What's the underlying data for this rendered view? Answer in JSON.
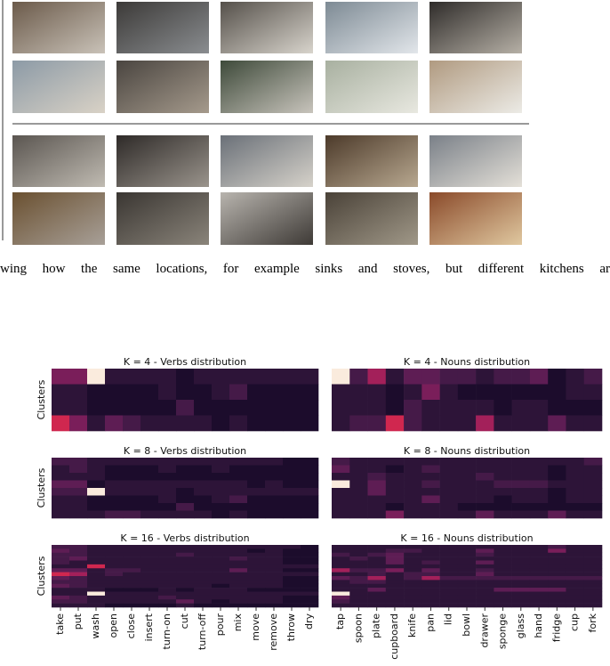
{
  "caption": "wing how the same locations, for example sinks and stoves, but different kitchens ar",
  "heatmaps": {
    "colormap": [
      "#1c0c2c",
      "#2d1438",
      "#451a48",
      "#5e1d54",
      "#7a1e5a",
      "#a3205a",
      "#d0274f",
      "#ee5a45",
      "#f5a17c",
      "#faebdd"
    ],
    "y_label": "Clusters",
    "verbs": [
      "take",
      "put",
      "wash",
      "open",
      "close",
      "insert",
      "turn-on",
      "cut",
      "turn-off",
      "pour",
      "mix",
      "move",
      "remove",
      "throw",
      "dry"
    ],
    "nouns": [
      "tap",
      "spoon",
      "plate",
      "cupboard",
      "knife",
      "pan",
      "lid",
      "bowl",
      "drawer",
      "sponge",
      "glass",
      "hand",
      "fridge",
      "cup",
      "fork"
    ],
    "panels": [
      {
        "verbs": {
          "title": "K = 4 - Verbs distribution",
          "values": [
            [
              4,
              4,
              9,
              1,
              1,
              1,
              1,
              0,
              1,
              1,
              1,
              1,
              1,
              1,
              1
            ],
            [
              1,
              1,
              0,
              0,
              0,
              0,
              1,
              0,
              0,
              1,
              2,
              0,
              0,
              0,
              0
            ],
            [
              1,
              1,
              0,
              0,
              0,
              0,
              0,
              2,
              0,
              0,
              0,
              0,
              0,
              0,
              0
            ],
            [
              6,
              4,
              1,
              3,
              2,
              1,
              1,
              1,
              1,
              0,
              1,
              0,
              0,
              0,
              0
            ]
          ]
        },
        "nouns": {
          "title": "K = 4 - Nouns distribution",
          "values": [
            [
              9,
              2,
              5,
              1,
              3,
              3,
              2,
              2,
              1,
              2,
              2,
              3,
              0,
              1,
              2
            ],
            [
              1,
              1,
              1,
              0,
              1,
              4,
              1,
              0,
              0,
              0,
              0,
              0,
              0,
              1,
              1
            ],
            [
              1,
              1,
              1,
              0,
              2,
              1,
              1,
              1,
              1,
              0,
              1,
              1,
              0,
              0,
              0
            ],
            [
              1,
              2,
              2,
              6,
              2,
              1,
              1,
              1,
              5,
              1,
              1,
              1,
              3,
              1,
              1
            ]
          ]
        }
      },
      {
        "verbs": {
          "title": "K = 8 - Verbs distribution",
          "values": [
            [
              2,
              2,
              1,
              1,
              1,
              1,
              1,
              1,
              1,
              1,
              1,
              1,
              1,
              0,
              0
            ],
            [
              1,
              2,
              1,
              0,
              0,
              0,
              1,
              0,
              0,
              1,
              0,
              0,
              0,
              0,
              0
            ],
            [
              1,
              1,
              1,
              0,
              0,
              0,
              0,
              0,
              0,
              0,
              0,
              0,
              0,
              0,
              0
            ],
            [
              3,
              3,
              0,
              1,
              1,
              1,
              1,
              1,
              1,
              1,
              1,
              0,
              1,
              0,
              0
            ],
            [
              2,
              2,
              9,
              1,
              1,
              1,
              1,
              0,
              1,
              1,
              1,
              1,
              1,
              1,
              1
            ],
            [
              1,
              1,
              0,
              0,
              0,
              0,
              1,
              0,
              0,
              1,
              2,
              0,
              0,
              0,
              0
            ],
            [
              1,
              1,
              0,
              0,
              0,
              0,
              0,
              2,
              0,
              0,
              0,
              0,
              0,
              0,
              0
            ],
            [
              1,
              1,
              1,
              2,
              2,
              1,
              1,
              1,
              1,
              0,
              1,
              0,
              0,
              0,
              0
            ]
          ]
        },
        "nouns": {
          "title": "K = 8 - Nouns distribution",
          "values": [
            [
              2,
              1,
              1,
              1,
              1,
              1,
              1,
              1,
              1,
              1,
              1,
              1,
              1,
              1,
              2
            ],
            [
              3,
              1,
              1,
              0,
              1,
              2,
              1,
              1,
              1,
              1,
              1,
              1,
              0,
              1,
              1
            ],
            [
              1,
              1,
              2,
              1,
              1,
              1,
              1,
              1,
              2,
              1,
              1,
              1,
              0,
              1,
              1
            ],
            [
              9,
              1,
              3,
              1,
              1,
              2,
              1,
              1,
              1,
              2,
              2,
              2,
              1,
              1,
              1
            ],
            [
              1,
              1,
              3,
              1,
              1,
              1,
              1,
              1,
              1,
              1,
              1,
              1,
              0,
              1,
              1
            ],
            [
              1,
              1,
              1,
              1,
              1,
              3,
              1,
              1,
              1,
              0,
              1,
              1,
              0,
              1,
              1
            ],
            [
              1,
              1,
              1,
              0,
              1,
              1,
              1,
              0,
              0,
              0,
              0,
              0,
              0,
              0,
              0
            ],
            [
              1,
              1,
              1,
              4,
              1,
              1,
              1,
              1,
              3,
              1,
              1,
              1,
              3,
              1,
              1
            ]
          ]
        }
      },
      {
        "verbs": {
          "title": "K = 16 - Verbs distribution",
          "values": [
            [
              2,
              2,
              1,
              1,
              1,
              1,
              1,
              1,
              1,
              1,
              1,
              1,
              1,
              1,
              0
            ],
            [
              3,
              2,
              1,
              1,
              1,
              1,
              1,
              1,
              1,
              1,
              1,
              0,
              1,
              0,
              0
            ],
            [
              2,
              2,
              1,
              1,
              1,
              1,
              1,
              2,
              1,
              1,
              1,
              1,
              1,
              0,
              0
            ],
            [
              2,
              3,
              1,
              1,
              1,
              1,
              1,
              1,
              1,
              1,
              2,
              1,
              1,
              0,
              0
            ],
            [
              2,
              1,
              1,
              1,
              1,
              1,
              1,
              1,
              1,
              1,
              1,
              1,
              1,
              0,
              0
            ],
            [
              1,
              1,
              6,
              1,
              1,
              1,
              1,
              1,
              1,
              1,
              1,
              1,
              1,
              1,
              1
            ],
            [
              3,
              3,
              1,
              2,
              2,
              1,
              1,
              1,
              1,
              1,
              3,
              1,
              1,
              0,
              0
            ],
            [
              6,
              5,
              1,
              2,
              1,
              1,
              1,
              1,
              1,
              1,
              1,
              1,
              1,
              1,
              1
            ],
            [
              3,
              2,
              1,
              1,
              1,
              1,
              1,
              1,
              1,
              1,
              1,
              1,
              1,
              0,
              0
            ],
            [
              2,
              2,
              1,
              1,
              1,
              1,
              1,
              1,
              1,
              1,
              1,
              1,
              1,
              0,
              0
            ],
            [
              3,
              2,
              1,
              1,
              1,
              1,
              1,
              1,
              1,
              0,
              1,
              1,
              1,
              0,
              0
            ],
            [
              1,
              1,
              1,
              0,
              0,
              0,
              1,
              0,
              1,
              1,
              1,
              0,
              0,
              0,
              0
            ],
            [
              1,
              1,
              9,
              1,
              1,
              1,
              1,
              1,
              1,
              1,
              1,
              1,
              1,
              1,
              1
            ],
            [
              3,
              2,
              1,
              1,
              1,
              1,
              2,
              1,
              1,
              1,
              1,
              1,
              1,
              0,
              0
            ],
            [
              2,
              2,
              1,
              1,
              1,
              1,
              1,
              3,
              1,
              0,
              1,
              1,
              1,
              0,
              0
            ],
            [
              1,
              1,
              1,
              0,
              0,
              0,
              0,
              1,
              0,
              0,
              0,
              0,
              0,
              0,
              0
            ]
          ]
        },
        "nouns": {
          "title": "K = 16 - Nouns distribution",
          "values": [
            [
              1,
              1,
              1,
              1,
              1,
              1,
              1,
              1,
              1,
              1,
              1,
              1,
              2,
              1,
              1
            ],
            [
              1,
              1,
              1,
              2,
              2,
              1,
              1,
              1,
              3,
              1,
              1,
              1,
              4,
              1,
              1
            ],
            [
              2,
              1,
              2,
              3,
              1,
              1,
              1,
              1,
              2,
              1,
              1,
              1,
              1,
              1,
              1
            ],
            [
              1,
              2,
              1,
              3,
              1,
              1,
              1,
              1,
              1,
              1,
              1,
              1,
              1,
              1,
              1
            ],
            [
              1,
              1,
              1,
              3,
              1,
              2,
              1,
              1,
              3,
              1,
              1,
              1,
              1,
              1,
              1
            ],
            [
              1,
              1,
              1,
              1,
              1,
              1,
              1,
              1,
              1,
              1,
              1,
              1,
              1,
              1,
              1
            ],
            [
              5,
              2,
              2,
              4,
              1,
              3,
              1,
              1,
              2,
              1,
              1,
              1,
              1,
              1,
              1
            ],
            [
              1,
              1,
              2,
              1,
              2,
              2,
              1,
              1,
              3,
              1,
              1,
              1,
              1,
              1,
              1
            ],
            [
              3,
              2,
              5,
              1,
              2,
              5,
              2,
              2,
              2,
              2,
              2,
              2,
              2,
              2,
              2
            ],
            [
              1,
              2,
              2,
              1,
              1,
              1,
              1,
              1,
              1,
              1,
              1,
              1,
              1,
              1,
              1
            ],
            [
              1,
              1,
              1,
              1,
              1,
              1,
              1,
              1,
              1,
              1,
              1,
              1,
              1,
              1,
              1
            ],
            [
              1,
              1,
              3,
              1,
              1,
              1,
              1,
              1,
              1,
              3,
              3,
              3,
              3,
              1,
              1
            ],
            [
              9,
              1,
              1,
              1,
              1,
              1,
              1,
              1,
              1,
              1,
              1,
              1,
              1,
              1,
              1
            ],
            [
              3,
              1,
              1,
              1,
              1,
              1,
              1,
              1,
              1,
              1,
              1,
              1,
              1,
              1,
              1
            ],
            [
              2,
              1,
              1,
              1,
              1,
              1,
              1,
              1,
              1,
              1,
              1,
              1,
              1,
              1,
              1
            ],
            [
              1,
              1,
              1,
              1,
              1,
              1,
              1,
              1,
              1,
              1,
              1,
              1,
              1,
              1,
              1
            ]
          ]
        }
      }
    ]
  }
}
